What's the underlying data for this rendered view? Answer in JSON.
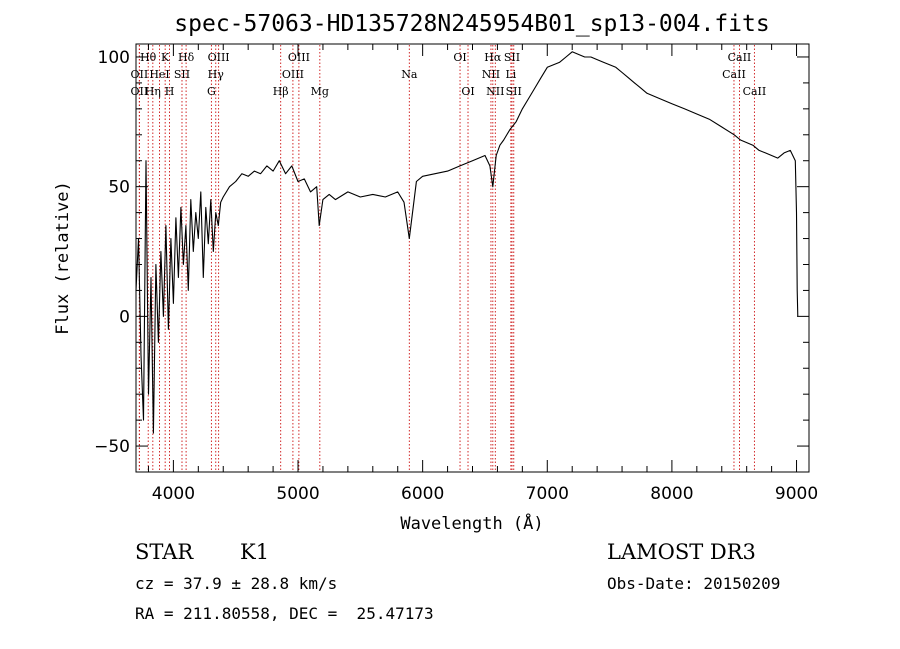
{
  "chart_data": {
    "type": "line",
    "title": "spec-57063-HD135728N245954B01_sp13-004.fits",
    "xlabel": "Wavelength (Å)",
    "ylabel": "Flux (relative)",
    "xlim": [
      3700,
      9100
    ],
    "ylim": [
      -60,
      105
    ],
    "x_ticks": [
      4000,
      5000,
      6000,
      7000,
      8000,
      9000
    ],
    "x_tick_labels": [
      "4000",
      "5000",
      "6000",
      "7000",
      "8000",
      "9000"
    ],
    "y_ticks": [
      -50,
      0,
      50,
      100
    ],
    "y_tick_labels": [
      "−50",
      "0",
      "50",
      "100"
    ],
    "series": [
      {
        "name": "flux",
        "x": [
          3700,
          3720,
          3740,
          3760,
          3780,
          3800,
          3820,
          3840,
          3860,
          3880,
          3900,
          3920,
          3940,
          3960,
          3980,
          4000,
          4020,
          4040,
          4060,
          4080,
          4100,
          4120,
          4140,
          4160,
          4180,
          4200,
          4220,
          4240,
          4260,
          4280,
          4300,
          4320,
          4340,
          4360,
          4380,
          4400,
          4450,
          4500,
          4550,
          4600,
          4650,
          4700,
          4750,
          4800,
          4850,
          4900,
          4950,
          5000,
          5050,
          5100,
          5150,
          5170,
          5200,
          5250,
          5300,
          5400,
          5500,
          5600,
          5700,
          5800,
          5850,
          5893,
          5950,
          6000,
          6100,
          6200,
          6300,
          6400,
          6500,
          6540,
          6563,
          6590,
          6620,
          6650,
          6700,
          6750,
          6800,
          6850,
          6900,
          6950,
          7000,
          7050,
          7100,
          7150,
          7200,
          7250,
          7300,
          7350,
          7400,
          7450,
          7500,
          7550,
          7600,
          7650,
          7700,
          7750,
          7800,
          7900,
          8000,
          8100,
          8200,
          8300,
          8400,
          8500,
          8550,
          8600,
          8650,
          8700,
          8750,
          8800,
          8850,
          8900,
          8950,
          8990,
          9000,
          9005,
          9010
        ],
        "y": [
          10,
          30,
          -15,
          -40,
          60,
          -30,
          15,
          -45,
          20,
          -10,
          25,
          0,
          35,
          -5,
          30,
          5,
          38,
          15,
          42,
          20,
          35,
          10,
          45,
          25,
          40,
          30,
          48,
          15,
          42,
          28,
          45,
          25,
          40,
          35,
          44,
          46,
          50,
          52,
          55,
          54,
          56,
          55,
          58,
          56,
          60,
          55,
          58,
          52,
          53,
          48,
          50,
          35,
          45,
          47,
          45,
          48,
          46,
          47,
          46,
          48,
          44,
          30,
          52,
          54,
          55,
          56,
          58,
          60,
          62,
          58,
          50,
          62,
          66,
          68,
          72,
          75,
          80,
          84,
          88,
          92,
          96,
          97,
          98,
          100,
          102,
          101,
          100,
          100,
          99,
          98,
          97,
          96,
          94,
          92,
          90,
          88,
          86,
          84,
          82,
          80,
          78,
          76,
          73,
          70,
          68,
          67,
          66,
          64,
          63,
          62,
          61,
          63,
          64,
          60,
          40,
          10,
          0
        ]
      }
    ],
    "lines": [
      {
        "name": "Hθ",
        "wavelength": 3798,
        "label_row": 1
      },
      {
        "name": "OII",
        "wavelength": 3727,
        "label_row": 2
      },
      {
        "name": "OII",
        "wavelength": 3727,
        "label_row": 3
      },
      {
        "name": "Hη",
        "wavelength": 3835,
        "label_row": 3
      },
      {
        "name": "HeI",
        "wavelength": 3889,
        "label_row": 2
      },
      {
        "name": "K",
        "wavelength": 3934,
        "label_row": 1
      },
      {
        "name": "H",
        "wavelength": 3969,
        "label_row": 3
      },
      {
        "name": "SII",
        "wavelength": 4069,
        "label_row": 2
      },
      {
        "name": "Hδ",
        "wavelength": 4102,
        "label_row": 1
      },
      {
        "name": "OIII",
        "wavelength": 4363,
        "label_row": 1
      },
      {
        "name": "Hγ",
        "wavelength": 4340,
        "label_row": 2
      },
      {
        "name": "G",
        "wavelength": 4305,
        "label_row": 3
      },
      {
        "name": "OIII",
        "wavelength": 5007,
        "label_row": 1
      },
      {
        "name": "OIII",
        "wavelength": 4959,
        "label_row": 2
      },
      {
        "name": "Hβ",
        "wavelength": 4861,
        "label_row": 3
      },
      {
        "name": "Mg",
        "wavelength": 5175,
        "label_row": 3
      },
      {
        "name": "Na",
        "wavelength": 5893,
        "label_row": 2
      },
      {
        "name": "OI",
        "wavelength": 6300,
        "label_row": 1
      },
      {
        "name": "OI",
        "wavelength": 6364,
        "label_row": 3
      },
      {
        "name": "Hα",
        "wavelength": 6563,
        "label_row": 1
      },
      {
        "name": "NII",
        "wavelength": 6548,
        "label_row": 2
      },
      {
        "name": "NII",
        "wavelength": 6583,
        "label_row": 3
      },
      {
        "name": "SII",
        "wavelength": 6717,
        "label_row": 1
      },
      {
        "name": "Li",
        "wavelength": 6708,
        "label_row": 2
      },
      {
        "name": "SII",
        "wavelength": 6731,
        "label_row": 3
      },
      {
        "name": "CaII",
        "wavelength": 8498,
        "label_row": 2
      },
      {
        "name": "CaII",
        "wavelength": 8542,
        "label_row": 1
      },
      {
        "name": "CaII",
        "wavelength": 8662,
        "label_row": 3
      }
    ]
  },
  "info": {
    "class": "STAR",
    "subclass": "K1",
    "survey": "LAMOST DR3",
    "cz": "cz = 37.9 ± 28.8 km/s",
    "obs_date": "Obs-Date: 20150209",
    "coords": "RA = 211.80558, DEC =  25.47173"
  }
}
